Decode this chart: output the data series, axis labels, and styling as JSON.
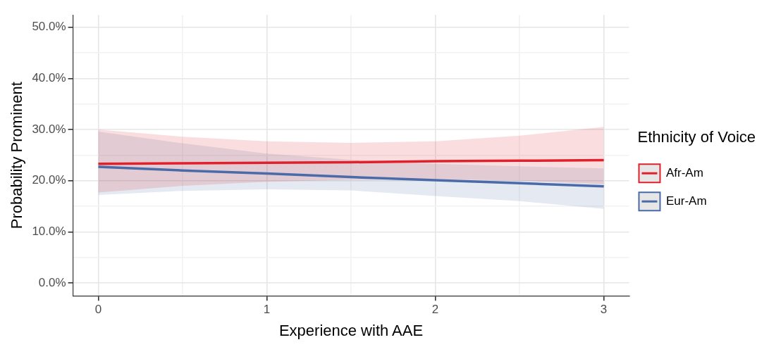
{
  "chart_data": {
    "type": "line",
    "xlabel": "Experience with AAE",
    "ylabel": "Probability Prominent",
    "legend_title": "Ethnicity of Voice",
    "legend": "right",
    "grid": true,
    "marker": "none",
    "line_style": "solid",
    "x": [
      0,
      0.5,
      1,
      1.5,
      2,
      2.5,
      3
    ],
    "xlim": [
      -0.15,
      3.15
    ],
    "xticks": [
      0,
      {
        "value": 0.5,
        "label": null
      },
      1,
      {
        "value": 1.5,
        "label": null
      },
      2,
      {
        "value": 2.5,
        "label": null
      },
      3
    ],
    "ylim": [
      -2.5,
      52.4
    ],
    "yticks": [
      {
        "value": 0,
        "label": "0.0%"
      },
      {
        "value": 5,
        "label": null
      },
      {
        "value": 10,
        "label": "10.0%"
      },
      {
        "value": 15,
        "label": null
      },
      {
        "value": 20,
        "label": "20.0%"
      },
      {
        "value": 25,
        "label": null
      },
      {
        "value": 30,
        "label": "30.0%"
      },
      {
        "value": 35,
        "label": null
      },
      {
        "value": 40,
        "label": "40.0%"
      },
      {
        "value": 45,
        "label": null
      },
      {
        "value": 50,
        "label": "50.0%"
      }
    ],
    "series": [
      {
        "name": "Afr-Am",
        "color": "#e0202b",
        "values": [
          23.3,
          23.4,
          23.5,
          23.6,
          23.8,
          23.9,
          24.0
        ],
        "lower": [
          17.7,
          19.0,
          19.8,
          20.2,
          20.3,
          20.0,
          19.3
        ],
        "upper": [
          30.0,
          28.6,
          27.7,
          27.4,
          27.7,
          28.8,
          30.5
        ]
      },
      {
        "name": "Eur-Am",
        "color": "#4a6aa8",
        "values": [
          22.7,
          22.0,
          21.4,
          20.7,
          20.1,
          19.5,
          18.9
        ],
        "lower": [
          17.2,
          18.0,
          18.3,
          18.1,
          17.0,
          16.0,
          14.5
        ],
        "upper": [
          29.6,
          27.3,
          25.3,
          24.1,
          23.3,
          22.8,
          22.4
        ]
      }
    ]
  }
}
